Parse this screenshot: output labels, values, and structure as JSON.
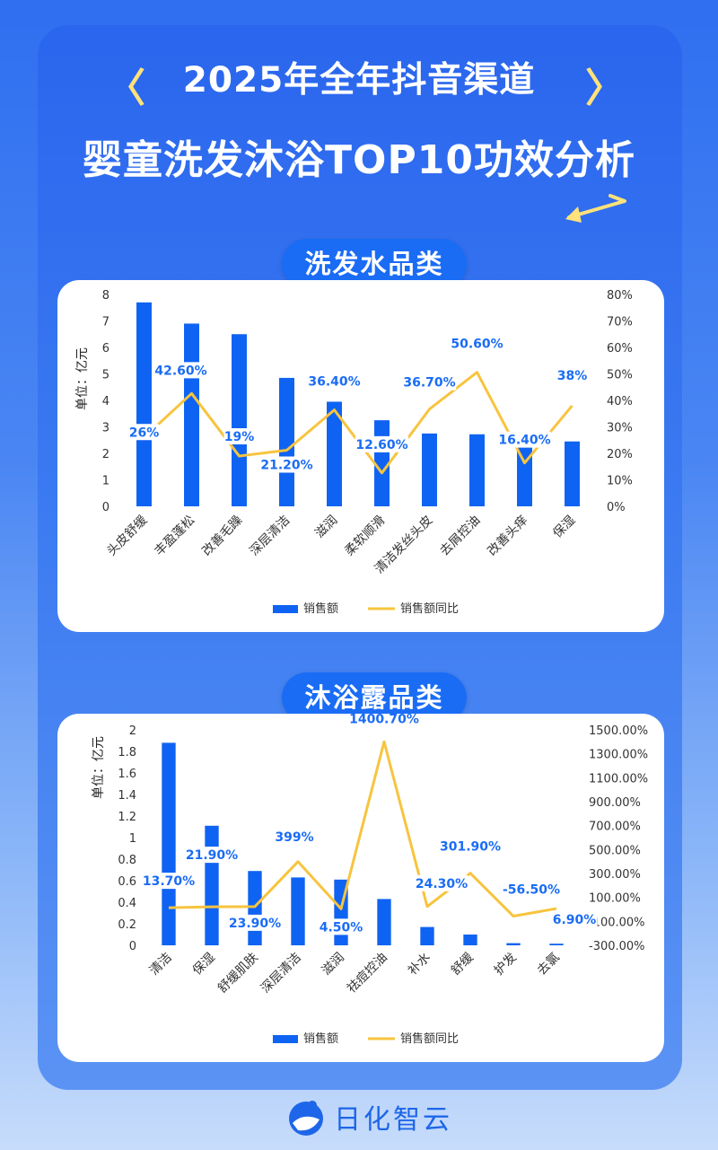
{
  "header": {
    "title_line1": "2025年全年抖音渠道",
    "title_line2": "婴童洗发沐浴TOP10功效分析",
    "bracket_left": "〈",
    "bracket_right": "〉"
  },
  "brand": {
    "name": "日化智云"
  },
  "colors": {
    "bar": "#0f63f2",
    "line": "#f7c43e",
    "label": "#1a6cf5",
    "accent": "#ffe27a"
  },
  "sections": [
    {
      "title": "洗发水品类"
    },
    {
      "title": "沐浴露品类"
    }
  ],
  "chart_data": [
    {
      "type": "bar",
      "title": "洗发水品类",
      "ylabel": "单位：亿元",
      "categories": [
        "头皮舒缓",
        "丰盈蓬松",
        "改善毛躁",
        "深层清洁",
        "滋润",
        "柔软顺滑",
        "清洁发丝头皮",
        "去屑控油",
        "改善头痒",
        "保湿"
      ],
      "series": [
        {
          "name": "销售额",
          "type": "bar",
          "axis": "left",
          "values": [
            7.7,
            6.9,
            6.5,
            4.85,
            3.95,
            3.25,
            2.75,
            2.72,
            2.55,
            2.45
          ]
        },
        {
          "name": "销售额同比",
          "type": "line",
          "axis": "right",
          "values": [
            26,
            42.6,
            19,
            21.2,
            36.4,
            12.6,
            36.7,
            50.6,
            16.4,
            38
          ]
        }
      ],
      "data_labels": [
        "26%",
        "42.60%",
        "19%",
        "21.20%",
        "36.40%",
        "12.60%",
        "36.70%",
        "50.60%",
        "16.40%",
        "38%"
      ],
      "ylim_left": [
        0,
        8
      ],
      "yticks_left": [
        "0",
        "1",
        "2",
        "3",
        "4",
        "5",
        "6",
        "7",
        "8"
      ],
      "ylim_right": [
        0,
        80
      ],
      "yticks_right": [
        "0%",
        "10%",
        "20%",
        "30%",
        "40%",
        "50%",
        "60%",
        "70%",
        "80%"
      ],
      "legend": {
        "position": "bottom",
        "entries": [
          "销售额",
          "销售额同比"
        ]
      },
      "grid": false
    },
    {
      "type": "bar",
      "title": "沐浴露品类",
      "ylabel": "单位：亿元",
      "categories": [
        "清洁",
        "保湿",
        "舒缓肌肤",
        "深层清洁",
        "滋润",
        "祛痘控油",
        "补水",
        "舒缓",
        "护发",
        "去氯"
      ],
      "series": [
        {
          "name": "销售额",
          "type": "bar",
          "axis": "left",
          "values": [
            1.88,
            1.11,
            0.69,
            0.63,
            0.61,
            0.43,
            0.17,
            0.1,
            0.02,
            0.015
          ]
        },
        {
          "name": "销售额同比",
          "type": "line",
          "axis": "right",
          "values": [
            13.7,
            21.9,
            23.9,
            399,
            4.5,
            1400.7,
            24.3,
            301.9,
            -56.5,
            6.9
          ]
        }
      ],
      "data_labels": [
        "13.70%",
        "21.90%",
        "23.90%",
        "399%",
        "4.50%",
        "1400.70%",
        "24.30%",
        "301.90%",
        "-56.50%",
        "6.90%"
      ],
      "ylim_left": [
        0,
        2
      ],
      "yticks_left": [
        "0",
        "0.2",
        "0.4",
        "0.6",
        "0.8",
        "1",
        "1.2",
        "1.4",
        "1.6",
        "1.8",
        "2"
      ],
      "ylim_right": [
        -300,
        1500
      ],
      "yticks_right": [
        "-300.00%",
        "-100.00%",
        "100.00%",
        "300.00%",
        "500.00%",
        "700.00%",
        "900.00%",
        "1100.00%",
        "1300.00%",
        "1500.00%"
      ],
      "legend": {
        "position": "bottom",
        "entries": [
          "销售额",
          "销售额同比"
        ]
      },
      "grid": false
    }
  ]
}
